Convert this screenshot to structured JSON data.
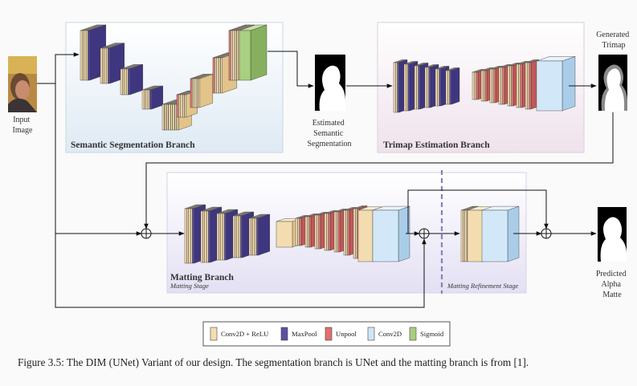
{
  "panels": {
    "semantic_title": "Semantic Segmentation Branch",
    "trimap_title": "Trimap Estimation Branch",
    "matting_title": "Matting Branch",
    "matting_stage": "Matting Stage",
    "refinement_stage": "Matting Refinement Stage"
  },
  "labels": {
    "input": [
      "Input",
      "Image"
    ],
    "estimated": [
      "Estimated",
      "Semantic",
      "Segmentation"
    ],
    "generated": [
      "Generated",
      "Trimap"
    ],
    "predicted": [
      "Predicted",
      "Alpha",
      "Matte"
    ]
  },
  "legend": [
    {
      "name": "conv-relu",
      "label": "Conv2D + ReLU",
      "color": "#f5deb0"
    },
    {
      "name": "maxpool",
      "label": "MaxPool",
      "color": "#5a4fa3"
    },
    {
      "name": "unpool",
      "label": "Unpool",
      "color": "#e07070"
    },
    {
      "name": "conv2d",
      "label": "Conv2D",
      "color": "#cfe6f8"
    },
    {
      "name": "sigmoid",
      "label": "Sigmoid",
      "color": "#a8cf7e"
    }
  ],
  "caption": "Figure 3.5: The DIM (UNet) Variant of our design. The segmentation branch is UNet and the matting branch is from [1]."
}
